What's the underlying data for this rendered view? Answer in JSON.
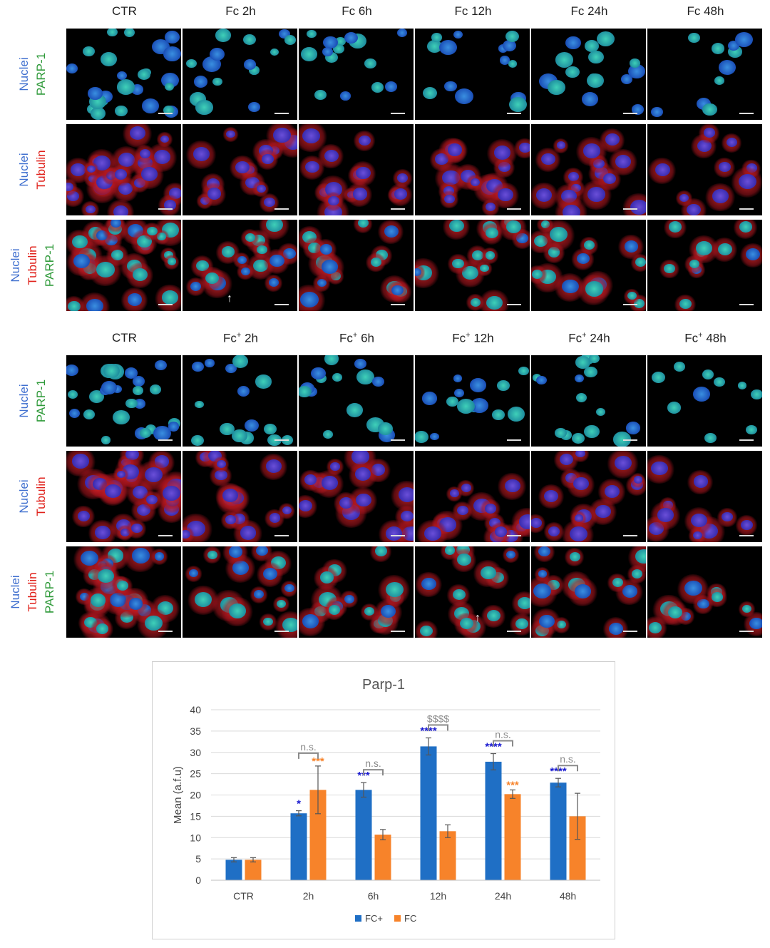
{
  "top_block": {
    "columns": [
      "CTR",
      "Fc 2h",
      "Fc 6h",
      "Fc 12h",
      "Fc 24h",
      "Fc 48h"
    ],
    "rows": [
      {
        "lines": [
          {
            "text": "Nuclei",
            "color": "blue"
          },
          {
            "text": "PARP-1",
            "color": "green"
          }
        ],
        "type": "parp"
      },
      {
        "lines": [
          {
            "text": "Nuclei",
            "color": "blue"
          },
          {
            "text": "Tubulin",
            "color": "red"
          }
        ],
        "type": "tub"
      },
      {
        "lines": [
          {
            "text": "Nuclei",
            "color": "blue"
          },
          {
            "text": "Tubulin",
            "color": "red"
          },
          {
            "text": "PARP-1",
            "color": "green"
          }
        ],
        "type": "merge"
      }
    ]
  },
  "bottom_block": {
    "columns": [
      {
        "base": "CTR",
        "sup": "",
        "suffix": ""
      },
      {
        "base": "Fc",
        "sup": "+",
        "suffix": " 2h"
      },
      {
        "base": "Fc",
        "sup": "+",
        "suffix": " 6h"
      },
      {
        "base": "Fc",
        "sup": "+",
        "suffix": " 12h"
      },
      {
        "base": "Fc",
        "sup": "+",
        "suffix": " 24h"
      },
      {
        "base": "Fc",
        "sup": "+",
        "suffix": " 48h"
      }
    ],
    "rows": [
      {
        "lines": [
          {
            "text": "Nuclei",
            "color": "blue"
          },
          {
            "text": "PARP-1",
            "color": "green"
          }
        ],
        "type": "parp"
      },
      {
        "lines": [
          {
            "text": "Nuclei",
            "color": "blue"
          },
          {
            "text": "Tubulin",
            "color": "red"
          }
        ],
        "type": "tub"
      },
      {
        "lines": [
          {
            "text": "Nuclei",
            "color": "blue"
          },
          {
            "text": "Tubulin",
            "color": "red"
          },
          {
            "text": "PARP-1",
            "color": "green"
          }
        ],
        "type": "merge"
      }
    ]
  },
  "arrow_glyph": "↑",
  "colors": {
    "fc_plus": "#1f6fc5",
    "fc": "#f7832a",
    "sig_plus": "#1a1ad0",
    "sig_fc": "#f7832a",
    "ns": "#8a8a8a",
    "axis_text": "#444444",
    "grid": "#d9d9d9"
  },
  "chart_data": {
    "type": "bar",
    "title": "Parp-1",
    "xlabel": "",
    "ylabel": "Mean (a.f.u)",
    "ylim": [
      0,
      40
    ],
    "yticks": [
      0,
      5,
      10,
      15,
      20,
      25,
      30,
      35,
      40
    ],
    "categories": [
      "CTR",
      "2h",
      "6h",
      "12h",
      "24h",
      "48h"
    ],
    "series": [
      {
        "name": "FC+",
        "values": [
          4.8,
          15.7,
          21.2,
          31.4,
          27.8,
          22.9
        ],
        "errors": [
          0.5,
          0.6,
          1.7,
          2.0,
          1.9,
          1.0
        ]
      },
      {
        "name": "FC",
        "values": [
          4.8,
          21.2,
          10.7,
          11.5,
          20.2,
          15.0
        ],
        "errors": [
          0.5,
          5.6,
          1.2,
          1.5,
          1.0,
          5.4
        ]
      }
    ],
    "significance_fc_plus": [
      "",
      "*",
      "***",
      "****",
      "****",
      "****"
    ],
    "significance_fc": [
      "",
      "***",
      "",
      "",
      "***",
      ""
    ],
    "brackets": [
      "",
      "n.s.",
      "n.s.",
      "$$$$",
      "n.s.",
      "n.s."
    ],
    "legend": [
      "FC+",
      "FC"
    ],
    "legend_position": "bottom",
    "grid": true
  }
}
